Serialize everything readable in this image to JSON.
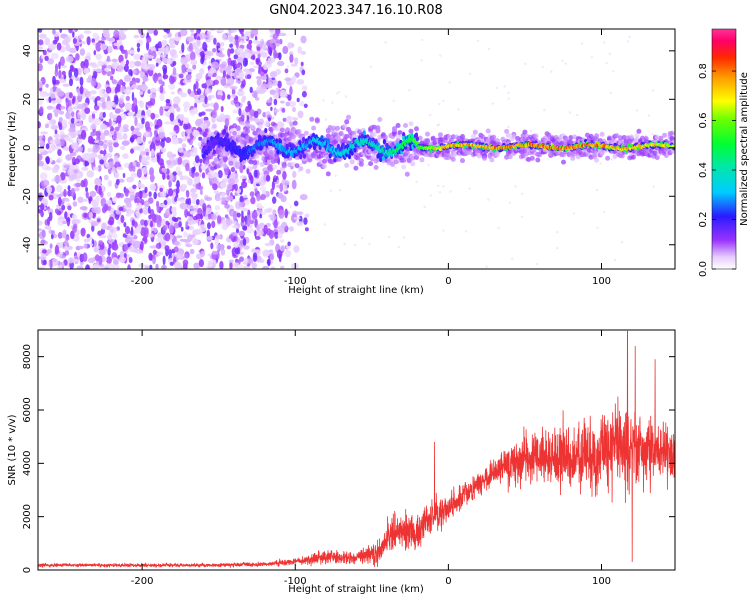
{
  "chart_data": [
    {
      "type": "heatmap",
      "title": "GN04.2023.347.16.10.R08",
      "xlabel": "Height of straight line (km)",
      "ylabel": "Frequency (Hz)",
      "xlim": [
        -268,
        148
      ],
      "ylim": [
        -50,
        49
      ],
      "xticks": [
        "-200",
        "-100",
        "0",
        "100"
      ],
      "xtick_values": [
        -200,
        -100,
        0,
        100
      ],
      "yticks": [
        "-40",
        "-20",
        "0",
        "20",
        "40"
      ],
      "ytick_values": [
        -40,
        -20,
        0,
        20,
        40
      ],
      "colorbar": {
        "label": "Normalized spectral amplitude",
        "ticks": [
          "0.0",
          "0.2",
          "0.4",
          "0.6",
          "0.8"
        ],
        "tick_values": [
          0.0,
          0.2,
          0.4,
          0.6,
          0.8
        ],
        "range": [
          0.0,
          0.97
        ],
        "colormap": "gist_ncar-like (white-purple-blue-cyan-green-yellow-orange-red-magenta)"
      },
      "features": {
        "noise_region_x": [
          -268,
          -105
        ],
        "band_center_hz": 0.5,
        "band_start_x": -160,
        "band_intensity_profile": [
          {
            "x": -160,
            "amp": 0.15
          },
          {
            "x": -120,
            "amp": 0.3
          },
          {
            "x": -80,
            "amp": 0.35
          },
          {
            "x": -40,
            "amp": 0.45
          },
          {
            "x": -20,
            "amp": 0.6
          },
          {
            "x": 0,
            "amp": 0.8
          },
          {
            "x": 50,
            "amp": 0.85
          },
          {
            "x": 100,
            "amp": 0.85
          },
          {
            "x": 148,
            "amp": 0.7
          }
        ]
      }
    },
    {
      "type": "line",
      "xlabel": "Height of straight line (km)",
      "ylabel": "SNR (10 * v/v)",
      "xlim": [
        -268,
        148
      ],
      "ylim": [
        0,
        9000
      ],
      "xticks": [
        "-200",
        "-100",
        "0",
        "100"
      ],
      "xtick_values": [
        -200,
        -100,
        0,
        100
      ],
      "yticks": [
        "0",
        "2000",
        "4000",
        "6000",
        "8000"
      ],
      "ytick_values": [
        0,
        2000,
        4000,
        6000,
        8000
      ],
      "color": "#ee3333",
      "series": [
        {
          "name": "SNR",
          "envelope": [
            {
              "x": -268,
              "mean": 180,
              "noise": 80
            },
            {
              "x": -150,
              "mean": 180,
              "noise": 80
            },
            {
              "x": -120,
              "mean": 220,
              "noise": 100
            },
            {
              "x": -100,
              "mean": 320,
              "noise": 150
            },
            {
              "x": -80,
              "mean": 500,
              "noise": 300
            },
            {
              "x": -60,
              "mean": 450,
              "noise": 300
            },
            {
              "x": -45,
              "mean": 700,
              "noise": 600
            },
            {
              "x": -35,
              "mean": 1500,
              "noise": 900
            },
            {
              "x": -20,
              "mean": 1400,
              "noise": 800
            },
            {
              "x": -10,
              "mean": 2000,
              "noise": 800
            },
            {
              "x": 10,
              "mean": 2800,
              "noise": 600
            },
            {
              "x": 30,
              "mean": 3700,
              "noise": 600
            },
            {
              "x": 50,
              "mean": 4200,
              "noise": 1200
            },
            {
              "x": 80,
              "mean": 4200,
              "noise": 1500
            },
            {
              "x": 110,
              "mean": 4500,
              "noise": 2000
            },
            {
              "x": 148,
              "mean": 4300,
              "noise": 1200
            }
          ],
          "spikes": [
            {
              "x": -9,
              "value": 4800
            },
            {
              "x": 117,
              "value": 8950
            },
            {
              "x": 122,
              "value": 8400
            },
            {
              "x": 135,
              "value": 7900
            },
            {
              "x": 120,
              "value": 300
            }
          ]
        }
      ]
    }
  ]
}
